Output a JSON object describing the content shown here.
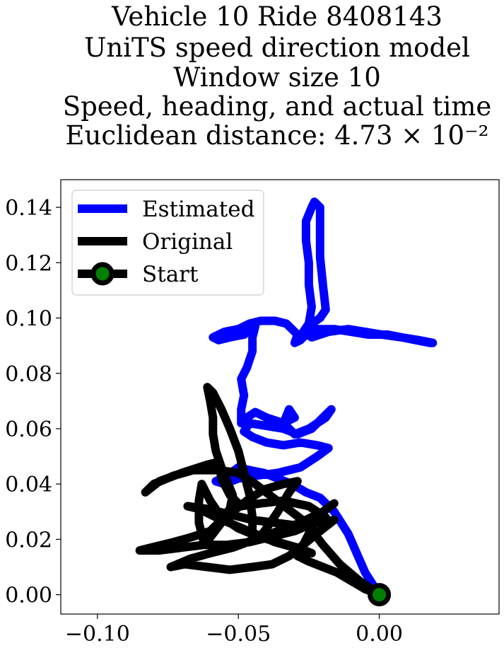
{
  "chart_data": {
    "type": "line",
    "title_lines": [
      "Vehicle 10 Ride 8408143",
      "UniTS speed direction model",
      "Window size 10",
      "Speed, heading, and actual time",
      "Euclidean distance: 4.73 × 10⁻²"
    ],
    "xlabel": "",
    "ylabel": "",
    "xlim": [
      -0.113,
      0.0425
    ],
    "ylim": [
      -0.007,
      0.15
    ],
    "xticks": [
      -0.1,
      -0.05,
      0.0
    ],
    "xtick_labels": [
      "−0.10",
      "−0.05",
      "0.00"
    ],
    "yticks": [
      0.0,
      0.02,
      0.04,
      0.06,
      0.08,
      0.1,
      0.12,
      0.14
    ],
    "ytick_labels": [
      "0.00",
      "0.02",
      "0.04",
      "0.06",
      "0.08",
      "0.10",
      "0.12",
      "0.14"
    ],
    "grid": false,
    "legend_position": "top-left",
    "legend": [
      {
        "label": "Estimated",
        "color": "#0000ff"
      },
      {
        "label": "Original",
        "color": "#000000"
      },
      {
        "label": "Start",
        "color": "#000000",
        "marker_color": "#008000"
      }
    ],
    "series": [
      {
        "name": "Estimated",
        "color": "#0000ff",
        "points": [
          [
            0.0,
            0.0
          ],
          [
            -0.005,
            0.008
          ],
          [
            -0.008,
            0.015
          ],
          [
            -0.011,
            0.022
          ],
          [
            -0.016,
            0.03
          ],
          [
            -0.021,
            0.035
          ],
          [
            -0.026,
            0.037
          ],
          [
            -0.031,
            0.04
          ],
          [
            -0.036,
            0.042
          ],
          [
            -0.041,
            0.044
          ],
          [
            -0.046,
            0.045
          ],
          [
            -0.05,
            0.046
          ],
          [
            -0.054,
            0.043
          ],
          [
            -0.058,
            0.041
          ],
          [
            -0.055,
            0.04
          ],
          [
            -0.05,
            0.042
          ],
          [
            -0.044,
            0.043
          ],
          [
            -0.036,
            0.044
          ],
          [
            -0.028,
            0.046
          ],
          [
            -0.022,
            0.05
          ],
          [
            -0.018,
            0.053
          ],
          [
            -0.022,
            0.054
          ],
          [
            -0.028,
            0.055
          ],
          [
            -0.034,
            0.054
          ],
          [
            -0.04,
            0.055
          ],
          [
            -0.045,
            0.057
          ],
          [
            -0.048,
            0.059
          ],
          [
            -0.046,
            0.062
          ],
          [
            -0.04,
            0.061
          ],
          [
            -0.034,
            0.06
          ],
          [
            -0.029,
            0.058
          ],
          [
            -0.024,
            0.06
          ],
          [
            -0.02,
            0.064
          ],
          [
            -0.017,
            0.067
          ],
          [
            -0.019,
            0.064
          ],
          [
            -0.025,
            0.06
          ],
          [
            -0.03,
            0.058
          ],
          [
            -0.034,
            0.062
          ],
          [
            -0.032,
            0.067
          ],
          [
            -0.03,
            0.064
          ],
          [
            -0.034,
            0.062
          ],
          [
            -0.04,
            0.064
          ],
          [
            -0.044,
            0.066
          ],
          [
            -0.047,
            0.064
          ],
          [
            -0.049,
            0.062
          ],
          [
            -0.049,
            0.067
          ],
          [
            -0.048,
            0.072
          ],
          [
            -0.049,
            0.078
          ],
          [
            -0.047,
            0.082
          ],
          [
            -0.045,
            0.088
          ],
          [
            -0.045,
            0.093
          ],
          [
            -0.044,
            0.097
          ],
          [
            -0.048,
            0.094
          ],
          [
            -0.053,
            0.093
          ],
          [
            -0.057,
            0.092
          ],
          [
            -0.059,
            0.093
          ],
          [
            -0.055,
            0.095
          ],
          [
            -0.05,
            0.096
          ],
          [
            -0.046,
            0.098
          ],
          [
            -0.042,
            0.099
          ],
          [
            -0.037,
            0.099
          ],
          [
            -0.033,
            0.098
          ],
          [
            -0.029,
            0.094
          ],
          [
            -0.03,
            0.091
          ],
          [
            -0.028,
            0.092
          ],
          [
            -0.026,
            0.094
          ],
          [
            -0.022,
            0.096
          ],
          [
            -0.016,
            0.096
          ],
          [
            -0.01,
            0.095
          ],
          [
            -0.004,
            0.094
          ],
          [
            0.003,
            0.094
          ],
          [
            0.008,
            0.093
          ],
          [
            0.013,
            0.092
          ],
          [
            0.018,
            0.091
          ],
          [
            0.019,
            0.091
          ],
          [
            0.014,
            0.092
          ],
          [
            0.008,
            0.093
          ],
          [
            0.001,
            0.094
          ],
          [
            -0.005,
            0.095
          ],
          [
            -0.011,
            0.096
          ],
          [
            -0.018,
            0.095
          ],
          [
            -0.024,
            0.093
          ],
          [
            -0.027,
            0.095
          ],
          [
            -0.025,
            0.098
          ],
          [
            -0.024,
            0.104
          ],
          [
            -0.025,
            0.112
          ],
          [
            -0.025,
            0.12
          ],
          [
            -0.026,
            0.128
          ],
          [
            -0.026,
            0.135
          ],
          [
            -0.024,
            0.14
          ],
          [
            -0.023,
            0.142
          ],
          [
            -0.021,
            0.14
          ],
          [
            -0.021,
            0.132
          ],
          [
            -0.021,
            0.122
          ],
          [
            -0.02,
            0.112
          ],
          [
            -0.019,
            0.103
          ],
          [
            -0.021,
            0.1
          ],
          [
            -0.024,
            0.098
          ]
        ]
      },
      {
        "name": "Original",
        "color": "#000000",
        "points": [
          [
            0.0,
            0.0
          ],
          [
            -0.007,
            0.005
          ],
          [
            -0.014,
            0.011
          ],
          [
            -0.02,
            0.018
          ],
          [
            -0.026,
            0.026
          ],
          [
            -0.035,
            0.033
          ],
          [
            -0.044,
            0.04
          ],
          [
            -0.05,
            0.044
          ],
          [
            -0.057,
            0.045
          ],
          [
            -0.066,
            0.045
          ],
          [
            -0.073,
            0.043
          ],
          [
            -0.08,
            0.04
          ],
          [
            -0.083,
            0.037
          ],
          [
            -0.078,
            0.041
          ],
          [
            -0.07,
            0.044
          ],
          [
            -0.061,
            0.047
          ],
          [
            -0.057,
            0.048
          ],
          [
            -0.056,
            0.042
          ],
          [
            -0.053,
            0.036
          ],
          [
            -0.049,
            0.032
          ],
          [
            -0.042,
            0.033
          ],
          [
            -0.034,
            0.034
          ],
          [
            -0.025,
            0.032
          ],
          [
            -0.019,
            0.028
          ],
          [
            -0.023,
            0.026
          ],
          [
            -0.03,
            0.023
          ],
          [
            -0.038,
            0.021
          ],
          [
            -0.046,
            0.019
          ],
          [
            -0.054,
            0.018
          ],
          [
            -0.062,
            0.018
          ],
          [
            -0.07,
            0.017
          ],
          [
            -0.078,
            0.016
          ],
          [
            -0.085,
            0.016
          ],
          [
            -0.081,
            0.017
          ],
          [
            -0.073,
            0.019
          ],
          [
            -0.066,
            0.021
          ],
          [
            -0.06,
            0.023
          ],
          [
            -0.056,
            0.027
          ],
          [
            -0.053,
            0.031
          ],
          [
            -0.052,
            0.036
          ],
          [
            -0.054,
            0.041
          ],
          [
            -0.056,
            0.046
          ],
          [
            -0.058,
            0.052
          ],
          [
            -0.059,
            0.058
          ],
          [
            -0.059,
            0.064
          ],
          [
            -0.06,
            0.07
          ],
          [
            -0.061,
            0.075
          ],
          [
            -0.059,
            0.073
          ],
          [
            -0.056,
            0.067
          ],
          [
            -0.053,
            0.06
          ],
          [
            -0.05,
            0.052
          ],
          [
            -0.048,
            0.044
          ],
          [
            -0.046,
            0.036
          ],
          [
            -0.045,
            0.028
          ],
          [
            -0.045,
            0.022
          ],
          [
            -0.043,
            0.02
          ],
          [
            -0.04,
            0.024
          ],
          [
            -0.036,
            0.03
          ],
          [
            -0.032,
            0.037
          ],
          [
            -0.029,
            0.041
          ],
          [
            -0.034,
            0.04
          ],
          [
            -0.041,
            0.038
          ],
          [
            -0.047,
            0.034
          ],
          [
            -0.052,
            0.03
          ],
          [
            -0.056,
            0.026
          ],
          [
            -0.059,
            0.022
          ],
          [
            -0.062,
            0.018
          ],
          [
            -0.064,
            0.026
          ],
          [
            -0.064,
            0.034
          ],
          [
            -0.063,
            0.04
          ],
          [
            -0.06,
            0.034
          ],
          [
            -0.056,
            0.028
          ],
          [
            -0.05,
            0.024
          ],
          [
            -0.043,
            0.021
          ],
          [
            -0.036,
            0.019
          ],
          [
            -0.029,
            0.017
          ],
          [
            -0.024,
            0.015
          ],
          [
            -0.03,
            0.017
          ],
          [
            -0.037,
            0.019
          ],
          [
            -0.044,
            0.022
          ],
          [
            -0.051,
            0.025
          ],
          [
            -0.058,
            0.028
          ],
          [
            -0.064,
            0.031
          ],
          [
            -0.068,
            0.032
          ],
          [
            -0.061,
            0.031
          ],
          [
            -0.053,
            0.029
          ],
          [
            -0.045,
            0.027
          ],
          [
            -0.037,
            0.026
          ],
          [
            -0.029,
            0.025
          ],
          [
            -0.021,
            0.026
          ],
          [
            -0.016,
            0.027
          ],
          [
            -0.021,
            0.023
          ],
          [
            -0.027,
            0.018
          ],
          [
            -0.032,
            0.014
          ],
          [
            -0.038,
            0.011
          ],
          [
            -0.045,
            0.01
          ],
          [
            -0.053,
            0.009
          ],
          [
            -0.061,
            0.01
          ],
          [
            -0.069,
            0.011
          ],
          [
            -0.074,
            0.01
          ],
          [
            -0.067,
            0.013
          ],
          [
            -0.06,
            0.015
          ],
          [
            -0.052,
            0.017
          ],
          [
            -0.044,
            0.02
          ],
          [
            -0.036,
            0.023
          ],
          [
            -0.028,
            0.026
          ],
          [
            -0.02,
            0.03
          ],
          [
            -0.016,
            0.033
          ],
          [
            -0.02,
            0.03
          ],
          [
            -0.024,
            0.024
          ],
          [
            -0.027,
            0.018
          ],
          [
            -0.029,
            0.014
          ],
          [
            -0.025,
            0.012
          ],
          [
            -0.02,
            0.01
          ],
          [
            -0.015,
            0.008
          ],
          [
            -0.01,
            0.005
          ],
          [
            -0.005,
            0.002
          ],
          [
            0.0,
            0.0
          ]
        ]
      }
    ],
    "start_point": [
      0.0,
      0.0
    ]
  }
}
